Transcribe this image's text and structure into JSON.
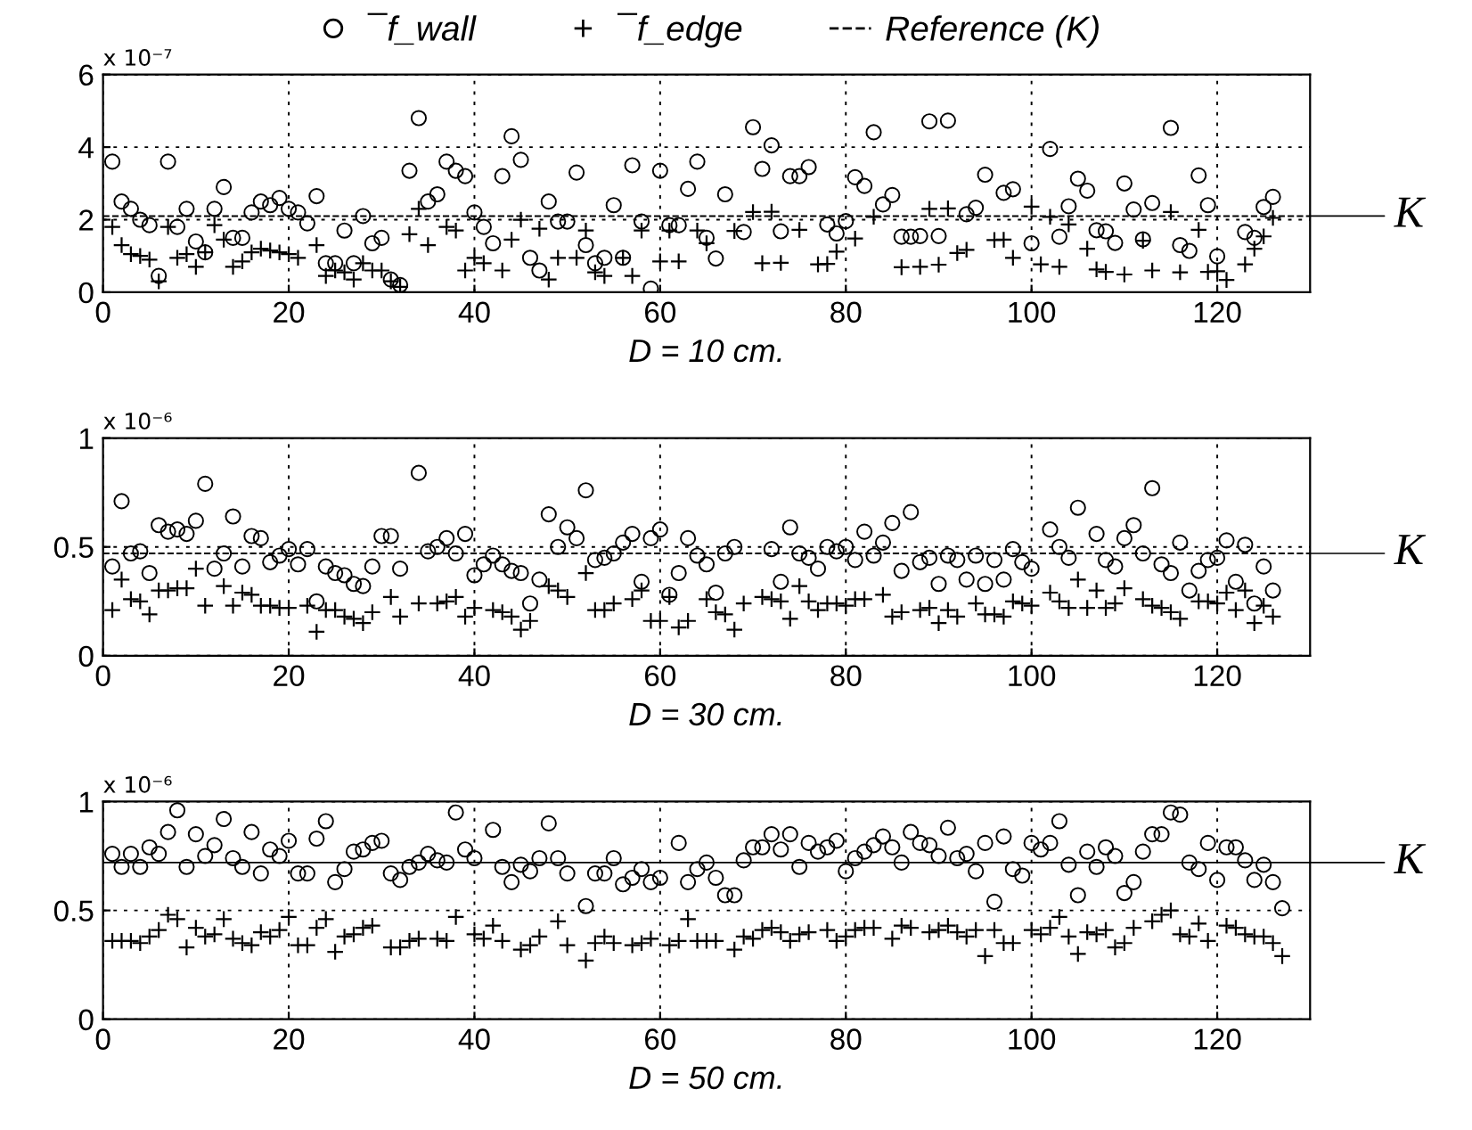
{
  "chart_data": [
    {
      "type": "scatter",
      "xlabel": "D = 10 cm.",
      "ylabel": "x 10⁻⁷",
      "xlim": [
        0,
        130
      ],
      "xticks": [
        0,
        20,
        40,
        60,
        80,
        100,
        120
      ],
      "ylim": [
        0,
        6
      ],
      "yticks": [
        0,
        2,
        4,
        6
      ],
      "grid": true,
      "legend": "top",
      "annotations": [
        "Reference (K)"
      ],
      "ref_lines": [
        {
          "axis": "y",
          "value": 2.1,
          "label": "K",
          "color": "#000000",
          "line_style": "dashed"
        }
      ],
      "series": [
        {
          "name": "¯f_wall",
          "color": "#000000",
          "marker": "circle",
          "x": [
            1,
            2,
            3,
            4,
            5,
            6,
            7,
            8,
            9,
            10,
            11,
            12,
            13,
            14,
            15,
            16,
            17,
            18,
            19,
            20,
            21,
            22,
            23,
            24,
            25,
            26,
            27,
            28,
            29,
            30,
            31,
            32,
            33,
            34,
            35,
            36,
            37,
            38,
            39,
            40,
            41,
            42,
            43,
            44,
            45,
            46,
            47,
            48,
            49,
            50,
            51,
            52,
            53,
            54,
            55,
            56,
            57,
            58,
            59,
            60,
            61,
            62,
            63,
            64,
            65,
            66,
            67,
            69,
            70,
            71,
            72,
            73,
            74,
            75,
            76,
            78,
            79,
            80,
            81,
            82,
            83,
            84,
            85,
            86,
            87,
            88,
            89,
            90,
            91,
            93,
            94,
            95,
            97,
            98,
            100,
            102,
            103,
            104,
            105,
            106,
            107,
            108,
            109,
            110,
            111,
            112,
            113,
            115,
            116,
            117,
            118,
            119,
            120,
            123,
            124,
            125,
            126
          ],
          "values": [
            3.6,
            2.5,
            2.3,
            2.0,
            1.85,
            0.45,
            3.6,
            1.8,
            2.3,
            1.4,
            1.1,
            2.3,
            2.9,
            1.5,
            1.5,
            2.2,
            2.5,
            2.4,
            2.6,
            2.3,
            2.2,
            1.9,
            2.65,
            0.8,
            0.8,
            1.7,
            0.8,
            2.1,
            1.35,
            1.5,
            0.35,
            0.2,
            3.35,
            4.8,
            2.5,
            2.7,
            3.6,
            3.35,
            3.2,
            2.2,
            1.8,
            1.35,
            3.2,
            4.3,
            3.65,
            0.95,
            0.6,
            2.5,
            1.95,
            1.95,
            3.3,
            1.3,
            0.8,
            0.95,
            2.4,
            0.95,
            3.5,
            1.95,
            0.1,
            3.35,
            1.85,
            1.85,
            2.85,
            3.6,
            1.5,
            0.93,
            2.7,
            1.66,
            4.55,
            3.4,
            4.05,
            1.68,
            3.2,
            3.2,
            3.45,
            1.87,
            1.62,
            1.96,
            3.17,
            2.93,
            4.41,
            2.42,
            2.68,
            1.53,
            1.53,
            1.55,
            4.71,
            1.55,
            4.73,
            2.15,
            2.33,
            3.24,
            2.74,
            2.84,
            1.35,
            3.95,
            1.53,
            2.37,
            3.13,
            2.8,
            1.71,
            1.68,
            1.36,
            3.0,
            2.28,
            1.46,
            2.46,
            4.53,
            1.3,
            1.14,
            3.22,
            2.4,
            0.99,
            1.66,
            1.5,
            2.35,
            2.63
          ]
        },
        {
          "name": "¯f_edge",
          "color": "#000000",
          "marker": "cross",
          "x": [
            1,
            2,
            3,
            4,
            5,
            6,
            7,
            8,
            9,
            10,
            11,
            12,
            13,
            14,
            15,
            16,
            17,
            18,
            19,
            20,
            21,
            23,
            24,
            25,
            26,
            27,
            28,
            29,
            30,
            31,
            32,
            33,
            34,
            35,
            37,
            38,
            39,
            40,
            41,
            43,
            44,
            45,
            47,
            48,
            49,
            51,
            52,
            53,
            54,
            56,
            57,
            58,
            60,
            61,
            62,
            64,
            65,
            68,
            70,
            71,
            72,
            73,
            75,
            77,
            78,
            79,
            81,
            83,
            86,
            88,
            89,
            90,
            91,
            92,
            93,
            96,
            97,
            98,
            100,
            101,
            102,
            103,
            104,
            106,
            107,
            108,
            110,
            112,
            113,
            115,
            116,
            118,
            119,
            120,
            121,
            123,
            124,
            125,
            126
          ],
          "values": [
            1.8,
            1.3,
            1.05,
            1.0,
            0.9,
            0.3,
            1.8,
            0.95,
            1.05,
            0.7,
            1.1,
            1.85,
            1.45,
            0.7,
            0.85,
            1.1,
            1.2,
            1.15,
            1.1,
            1.05,
            0.95,
            1.3,
            0.45,
            0.6,
            0.55,
            0.35,
            0.8,
            0.6,
            0.6,
            0.3,
            0.15,
            1.6,
            2.3,
            1.3,
            1.8,
            1.7,
            0.6,
            0.95,
            0.8,
            0.6,
            1.45,
            2.0,
            1.75,
            0.35,
            0.95,
            0.95,
            1.7,
            0.55,
            0.45,
            0.95,
            0.45,
            1.7,
            0.85,
            1.7,
            0.85,
            1.7,
            1.35,
            1.69,
            2.21,
            0.8,
            2.22,
            0.81,
            1.72,
            0.77,
            0.78,
            1.12,
            1.48,
            2.08,
            0.69,
            0.7,
            2.3,
            0.76,
            2.31,
            1.08,
            1.17,
            1.44,
            1.45,
            0.95,
            2.36,
            0.77,
            2.08,
            0.7,
            1.87,
            1.2,
            0.63,
            0.56,
            0.49,
            1.42,
            0.6,
            2.21,
            0.55,
            1.72,
            0.56,
            0.58,
            0.34,
            0.77,
            1.2,
            1.54,
            2.05
          ]
        }
      ]
    },
    {
      "type": "scatter",
      "xlabel": "D = 30 cm.",
      "ylabel": "x 10⁻⁶",
      "xlim": [
        0,
        130
      ],
      "xticks": [
        0,
        20,
        40,
        60,
        80,
        100,
        120
      ],
      "ylim": [
        0,
        1
      ],
      "yticks": [
        0,
        0.5,
        1
      ],
      "grid": true,
      "ref_lines": [
        {
          "axis": "y",
          "value": 0.47,
          "label": "K",
          "color": "#000000",
          "line_style": "dashed"
        }
      ],
      "series": [
        {
          "color": "#000000",
          "marker": "circle",
          "x": [
            1,
            2,
            3,
            4,
            5,
            6,
            7,
            8,
            9,
            10,
            11,
            12,
            13,
            14,
            15,
            16,
            17,
            18,
            19,
            20,
            21,
            22,
            23,
            24,
            25,
            26,
            27,
            28,
            29,
            30,
            31,
            32,
            34,
            35,
            36,
            37,
            38,
            39,
            40,
            41,
            42,
            43,
            44,
            45,
            46,
            47,
            48,
            49,
            50,
            51,
            52,
            53,
            54,
            55,
            56,
            57,
            58,
            59,
            60,
            61,
            62,
            63,
            64,
            65,
            66,
            67,
            68,
            72,
            73,
            74,
            75,
            76,
            77,
            78,
            79,
            80,
            81,
            82,
            83,
            84,
            85,
            86,
            87,
            88,
            89,
            90,
            91,
            92,
            93,
            94,
            95,
            96,
            97,
            98,
            99,
            100,
            102,
            103,
            104,
            105,
            107,
            108,
            109,
            110,
            111,
            112,
            113,
            114,
            115,
            116,
            117,
            118,
            119,
            120,
            121,
            122,
            123,
            124,
            125,
            126
          ],
          "values": [
            0.41,
            0.71,
            0.47,
            0.48,
            0.38,
            0.6,
            0.57,
            0.58,
            0.56,
            0.62,
            0.79,
            0.4,
            0.47,
            0.64,
            0.41,
            0.55,
            0.54,
            0.43,
            0.46,
            0.49,
            0.42,
            0.49,
            0.25,
            0.41,
            0.38,
            0.37,
            0.33,
            0.32,
            0.41,
            0.55,
            0.55,
            0.4,
            0.84,
            0.48,
            0.5,
            0.54,
            0.47,
            0.56,
            0.37,
            0.42,
            0.46,
            0.42,
            0.39,
            0.38,
            0.24,
            0.35,
            0.65,
            0.5,
            0.59,
            0.54,
            0.76,
            0.44,
            0.45,
            0.47,
            0.52,
            0.56,
            0.34,
            0.54,
            0.58,
            0.28,
            0.38,
            0.54,
            0.46,
            0.42,
            0.29,
            0.47,
            0.5,
            0.49,
            0.34,
            0.59,
            0.47,
            0.45,
            0.4,
            0.5,
            0.48,
            0.5,
            0.44,
            0.57,
            0.46,
            0.52,
            0.61,
            0.39,
            0.66,
            0.43,
            0.45,
            0.33,
            0.46,
            0.44,
            0.35,
            0.46,
            0.33,
            0.44,
            0.35,
            0.49,
            0.43,
            0.4,
            0.58,
            0.5,
            0.45,
            0.68,
            0.56,
            0.44,
            0.41,
            0.54,
            0.6,
            0.47,
            0.77,
            0.42,
            0.38,
            0.52,
            0.3,
            0.39,
            0.44,
            0.45,
            0.53,
            0.34,
            0.51,
            0.24,
            0.41,
            0.3
          ]
        },
        {
          "color": "#000000",
          "marker": "cross",
          "x": [
            1,
            2,
            3,
            4,
            5,
            6,
            7,
            8,
            9,
            10,
            11,
            13,
            14,
            15,
            16,
            17,
            18,
            19,
            20,
            22,
            23,
            24,
            25,
            26,
            27,
            28,
            29,
            31,
            32,
            34,
            36,
            37,
            38,
            39,
            40,
            42,
            43,
            44,
            45,
            46,
            48,
            49,
            50,
            52,
            53,
            54,
            55,
            57,
            58,
            59,
            60,
            61,
            62,
            63,
            65,
            66,
            67,
            68,
            69,
            71,
            72,
            73,
            74,
            75,
            76,
            77,
            78,
            79,
            80,
            81,
            82,
            84,
            85,
            86,
            88,
            89,
            90,
            91,
            92,
            94,
            95,
            96,
            97,
            98,
            99,
            100,
            102,
            103,
            104,
            105,
            106,
            107,
            108,
            109,
            110,
            112,
            113,
            114,
            115,
            116,
            118,
            119,
            120,
            121,
            122,
            123,
            124,
            125,
            126
          ],
          "values": [
            0.21,
            0.35,
            0.26,
            0.25,
            0.19,
            0.3,
            0.3,
            0.31,
            0.31,
            0.4,
            0.23,
            0.32,
            0.23,
            0.29,
            0.28,
            0.23,
            0.23,
            0.22,
            0.22,
            0.23,
            0.11,
            0.21,
            0.21,
            0.18,
            0.17,
            0.15,
            0.2,
            0.27,
            0.18,
            0.24,
            0.24,
            0.25,
            0.27,
            0.18,
            0.22,
            0.21,
            0.2,
            0.18,
            0.12,
            0.16,
            0.32,
            0.3,
            0.27,
            0.38,
            0.21,
            0.21,
            0.24,
            0.26,
            0.3,
            0.16,
            0.16,
            0.27,
            0.13,
            0.16,
            0.26,
            0.2,
            0.19,
            0.12,
            0.24,
            0.27,
            0.26,
            0.25,
            0.17,
            0.32,
            0.25,
            0.21,
            0.24,
            0.24,
            0.23,
            0.26,
            0.26,
            0.28,
            0.18,
            0.2,
            0.21,
            0.22,
            0.15,
            0.21,
            0.18,
            0.24,
            0.19,
            0.19,
            0.18,
            0.25,
            0.24,
            0.23,
            0.29,
            0.25,
            0.22,
            0.35,
            0.22,
            0.3,
            0.22,
            0.24,
            0.31,
            0.26,
            0.23,
            0.22,
            0.2,
            0.17,
            0.25,
            0.25,
            0.24,
            0.29,
            0.21,
            0.3,
            0.15,
            0.23,
            0.18
          ]
        }
      ]
    },
    {
      "type": "scatter",
      "xlabel": "D = 50 cm.",
      "ylabel": "x 10⁻⁶",
      "xlim": [
        0,
        130
      ],
      "xticks": [
        0,
        20,
        40,
        60,
        80,
        100,
        120
      ],
      "ylim": [
        0,
        1
      ],
      "yticks": [
        0,
        0.5,
        1
      ],
      "grid": true,
      "ref_lines": [
        {
          "axis": "y",
          "value": 0.72,
          "label": "K",
          "color": "#000000",
          "line_style": "solid"
        }
      ],
      "series": [
        {
          "color": "#000000",
          "marker": "circle",
          "x": [
            1,
            2,
            3,
            4,
            5,
            6,
            7,
            8,
            9,
            10,
            11,
            12,
            13,
            14,
            15,
            16,
            17,
            18,
            19,
            20,
            21,
            22,
            23,
            24,
            25,
            26,
            27,
            28,
            29,
            30,
            31,
            32,
            33,
            34,
            35,
            36,
            37,
            38,
            39,
            40,
            42,
            43,
            44,
            45,
            46,
            47,
            48,
            49,
            50,
            52,
            53,
            54,
            55,
            56,
            57,
            58,
            59,
            60,
            62,
            63,
            64,
            65,
            66,
            67,
            68,
            69,
            70,
            71,
            72,
            73,
            74,
            75,
            76,
            77,
            78,
            79,
            80,
            81,
            82,
            83,
            84,
            85,
            86,
            87,
            88,
            89,
            90,
            91,
            92,
            93,
            94,
            95,
            96,
            97,
            98,
            99,
            100,
            101,
            102,
            103,
            104,
            105,
            106,
            107,
            108,
            109,
            110,
            111,
            112,
            113,
            114,
            115,
            116,
            117,
            118,
            119,
            120,
            121,
            122,
            123,
            124,
            125,
            126,
            127
          ],
          "values": [
            0.76,
            0.7,
            0.76,
            0.7,
            0.79,
            0.76,
            0.86,
            0.96,
            0.7,
            0.85,
            0.75,
            0.8,
            0.92,
            0.74,
            0.7,
            0.86,
            0.67,
            0.78,
            0.75,
            0.82,
            0.67,
            0.67,
            0.83,
            0.91,
            0.63,
            0.69,
            0.77,
            0.78,
            0.81,
            0.82,
            0.67,
            0.64,
            0.7,
            0.72,
            0.76,
            0.73,
            0.72,
            0.95,
            0.78,
            0.74,
            0.87,
            0.7,
            0.63,
            0.71,
            0.68,
            0.74,
            0.9,
            0.74,
            0.67,
            0.52,
            0.67,
            0.67,
            0.74,
            0.62,
            0.65,
            0.69,
            0.63,
            0.65,
            0.81,
            0.63,
            0.69,
            0.72,
            0.65,
            0.57,
            0.57,
            0.73,
            0.79,
            0.79,
            0.85,
            0.78,
            0.85,
            0.7,
            0.81,
            0.77,
            0.79,
            0.82,
            0.68,
            0.74,
            0.77,
            0.8,
            0.84,
            0.79,
            0.72,
            0.86,
            0.81,
            0.8,
            0.75,
            0.88,
            0.74,
            0.76,
            0.68,
            0.81,
            0.54,
            0.84,
            0.69,
            0.66,
            0.81,
            0.78,
            0.81,
            0.91,
            0.71,
            0.57,
            0.77,
            0.7,
            0.79,
            0.75,
            0.58,
            0.63,
            0.77,
            0.85,
            0.85,
            0.95,
            0.94,
            0.72,
            0.69,
            0.81,
            0.64,
            0.79,
            0.79,
            0.73,
            0.64,
            0.71,
            0.63,
            0.51
          ]
        },
        {
          "color": "#000000",
          "marker": "cross",
          "x": [
            1,
            2,
            3,
            4,
            5,
            6,
            7,
            8,
            9,
            10,
            11,
            12,
            13,
            14,
            15,
            16,
            17,
            18,
            19,
            20,
            21,
            22,
            23,
            24,
            25,
            26,
            27,
            28,
            29,
            31,
            32,
            33,
            34,
            36,
            37,
            38,
            40,
            41,
            42,
            43,
            45,
            46,
            47,
            49,
            50,
            52,
            53,
            54,
            55,
            57,
            58,
            59,
            61,
            62,
            63,
            64,
            65,
            66,
            68,
            69,
            70,
            71,
            72,
            73,
            74,
            75,
            76,
            78,
            79,
            80,
            81,
            82,
            83,
            85,
            86,
            87,
            89,
            90,
            91,
            92,
            93,
            94,
            95,
            96,
            97,
            98,
            100,
            101,
            102,
            103,
            104,
            105,
            106,
            107,
            108,
            109,
            110,
            111,
            113,
            114,
            115,
            116,
            117,
            118,
            119,
            121,
            122,
            123,
            124,
            125,
            126,
            127
          ],
          "values": [
            0.36,
            0.36,
            0.36,
            0.35,
            0.38,
            0.41,
            0.48,
            0.46,
            0.33,
            0.42,
            0.38,
            0.39,
            0.46,
            0.37,
            0.35,
            0.34,
            0.4,
            0.38,
            0.41,
            0.47,
            0.34,
            0.34,
            0.42,
            0.46,
            0.31,
            0.38,
            0.39,
            0.42,
            0.43,
            0.33,
            0.33,
            0.36,
            0.37,
            0.37,
            0.36,
            0.47,
            0.39,
            0.37,
            0.43,
            0.36,
            0.32,
            0.34,
            0.38,
            0.45,
            0.34,
            0.27,
            0.35,
            0.38,
            0.35,
            0.34,
            0.35,
            0.37,
            0.34,
            0.36,
            0.46,
            0.36,
            0.36,
            0.36,
            0.32,
            0.38,
            0.37,
            0.41,
            0.42,
            0.4,
            0.36,
            0.39,
            0.4,
            0.41,
            0.36,
            0.38,
            0.41,
            0.42,
            0.42,
            0.37,
            0.43,
            0.42,
            0.4,
            0.41,
            0.43,
            0.4,
            0.38,
            0.41,
            0.29,
            0.41,
            0.35,
            0.35,
            0.41,
            0.39,
            0.42,
            0.47,
            0.38,
            0.3,
            0.4,
            0.39,
            0.41,
            0.33,
            0.35,
            0.42,
            0.45,
            0.48,
            0.5,
            0.39,
            0.38,
            0.44,
            0.36,
            0.43,
            0.42,
            0.39,
            0.38,
            0.38,
            0.35,
            0.29
          ]
        }
      ]
    }
  ]
}
